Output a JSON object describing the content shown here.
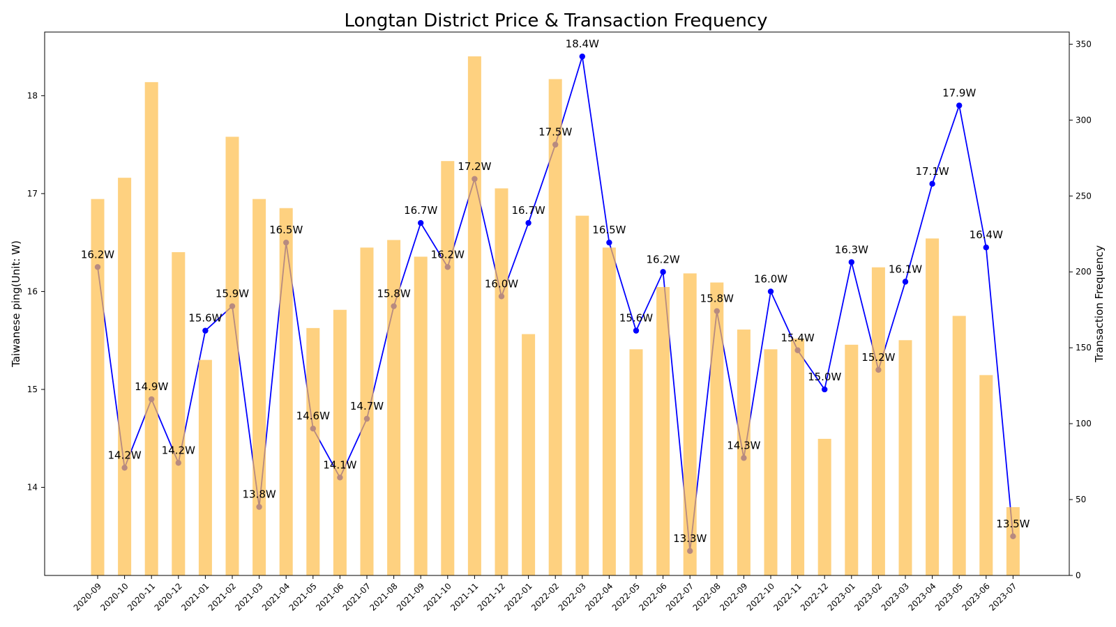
{
  "chart_data": {
    "type": "bar+line",
    "title": "Longtan District Price & Transaction Frequency",
    "categories": [
      "2020-09",
      "2020-10",
      "2020-11",
      "2020-12",
      "2021-01",
      "2021-02",
      "2021-03",
      "2021-04",
      "2021-05",
      "2021-06",
      "2021-07",
      "2021-08",
      "2021-09",
      "2021-10",
      "2021-11",
      "2021-12",
      "2022-01",
      "2022-02",
      "2022-03",
      "2022-04",
      "2022-05",
      "2022-06",
      "2022-07",
      "2022-08",
      "2022-09",
      "2022-10",
      "2022-11",
      "2022-12",
      "2023-01",
      "2023-02",
      "2023-03",
      "2023-04",
      "2023-05",
      "2023-06",
      "2023-07"
    ],
    "y_left": {
      "label": "Taiwanese ping(Unit: W)",
      "ylim": [
        13.1,
        18.65
      ],
      "ticks": [
        "14",
        "15",
        "16",
        "17",
        "18"
      ]
    },
    "y_right": {
      "label": "Transaction Frequency",
      "ylim": [
        0,
        358
      ],
      "ticks": [
        "0",
        "50",
        "100",
        "150",
        "200",
        "250",
        "300",
        "350"
      ]
    },
    "series": [
      {
        "kind": "line",
        "axis": "left",
        "color": "#0000ff",
        "values": [
          16.25,
          14.2,
          14.9,
          14.25,
          15.6,
          15.85,
          13.8,
          16.5,
          14.6,
          14.1,
          14.7,
          15.85,
          16.7,
          16.25,
          17.15,
          15.95,
          16.7,
          17.5,
          18.4,
          16.5,
          15.6,
          16.2,
          13.35,
          15.8,
          14.3,
          16.0,
          15.4,
          15.0,
          16.3,
          15.2,
          16.1,
          17.1,
          17.9,
          16.45,
          13.5
        ],
        "labels": [
          "16.2W",
          "14.2W",
          "14.9W",
          "14.2W",
          "15.6W",
          "15.9W",
          "13.8W",
          "16.5W",
          "14.6W",
          "14.1W",
          "14.7W",
          "15.8W",
          "16.7W",
          "16.2W",
          "17.2W",
          "16.0W",
          "16.7W",
          "17.5W",
          "18.4W",
          "16.5W",
          "15.6W",
          "16.2W",
          "13.3W",
          "15.8W",
          "14.3W",
          "16.0W",
          "15.4W",
          "15.0W",
          "16.3W",
          "15.2W",
          "16.1W",
          "17.1W",
          "17.9W",
          "16.4W",
          "13.5W"
        ]
      },
      {
        "kind": "bar",
        "axis": "right",
        "color": "#fdbf4f",
        "values": [
          248,
          262,
          325,
          213,
          142,
          289,
          248,
          242,
          163,
          175,
          216,
          221,
          210,
          273,
          342,
          255,
          159,
          327,
          237,
          216,
          149,
          190,
          199,
          193,
          162,
          149,
          156,
          90,
          152,
          203,
          155,
          222,
          171,
          132,
          45
        ]
      }
    ],
    "grid": false,
    "legend": "none"
  }
}
